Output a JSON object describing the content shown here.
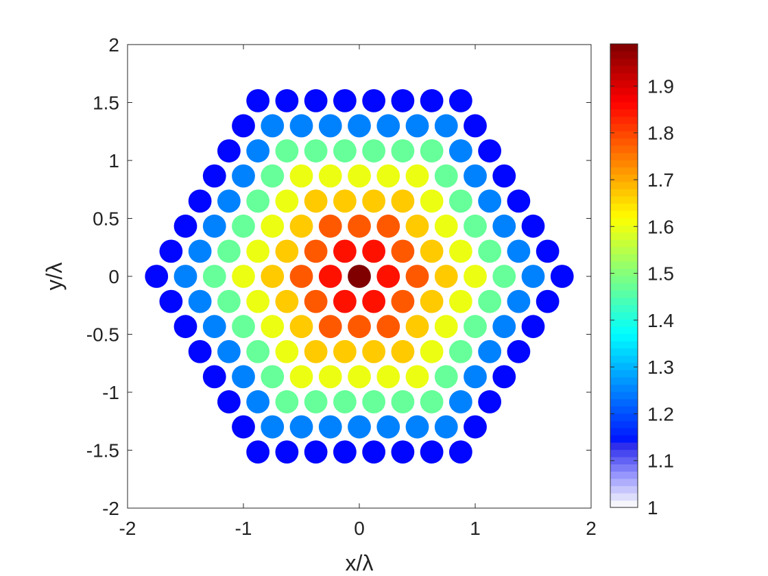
{
  "chart_data": {
    "type": "scatter",
    "title": "",
    "xlabel": "x/λ",
    "ylabel": "y/λ",
    "xlim": [
      -2,
      2
    ],
    "ylim": [
      -2,
      2
    ],
    "xticks": [
      "-2",
      "-1",
      "0",
      "1",
      "2"
    ],
    "yticks": [
      "2",
      "1.5",
      "1",
      "0.5",
      "0",
      "-0.5",
      "-1",
      "-1.5",
      "-2"
    ],
    "grid": false,
    "lattice": "hexagonal",
    "lattice_spacing": 0.25,
    "rings": 7,
    "center_value": 1.99,
    "ring_values": [
      1.99,
      1.85,
      1.78,
      1.67,
      1.6,
      1.47,
      1.25,
      1.13
    ],
    "colorbar": {
      "colormap": "jet",
      "range": [
        1,
        1.99
      ],
      "ticks": [
        "1",
        "1.1",
        "1.2",
        "1.3",
        "1.4",
        "1.5",
        "1.6",
        "1.7",
        "1.8",
        "1.9"
      ],
      "tick_values": [
        1,
        1.1,
        1.2,
        1.3,
        1.4,
        1.5,
        1.6,
        1.7,
        1.8,
        1.9
      ],
      "low_end": "white"
    }
  }
}
